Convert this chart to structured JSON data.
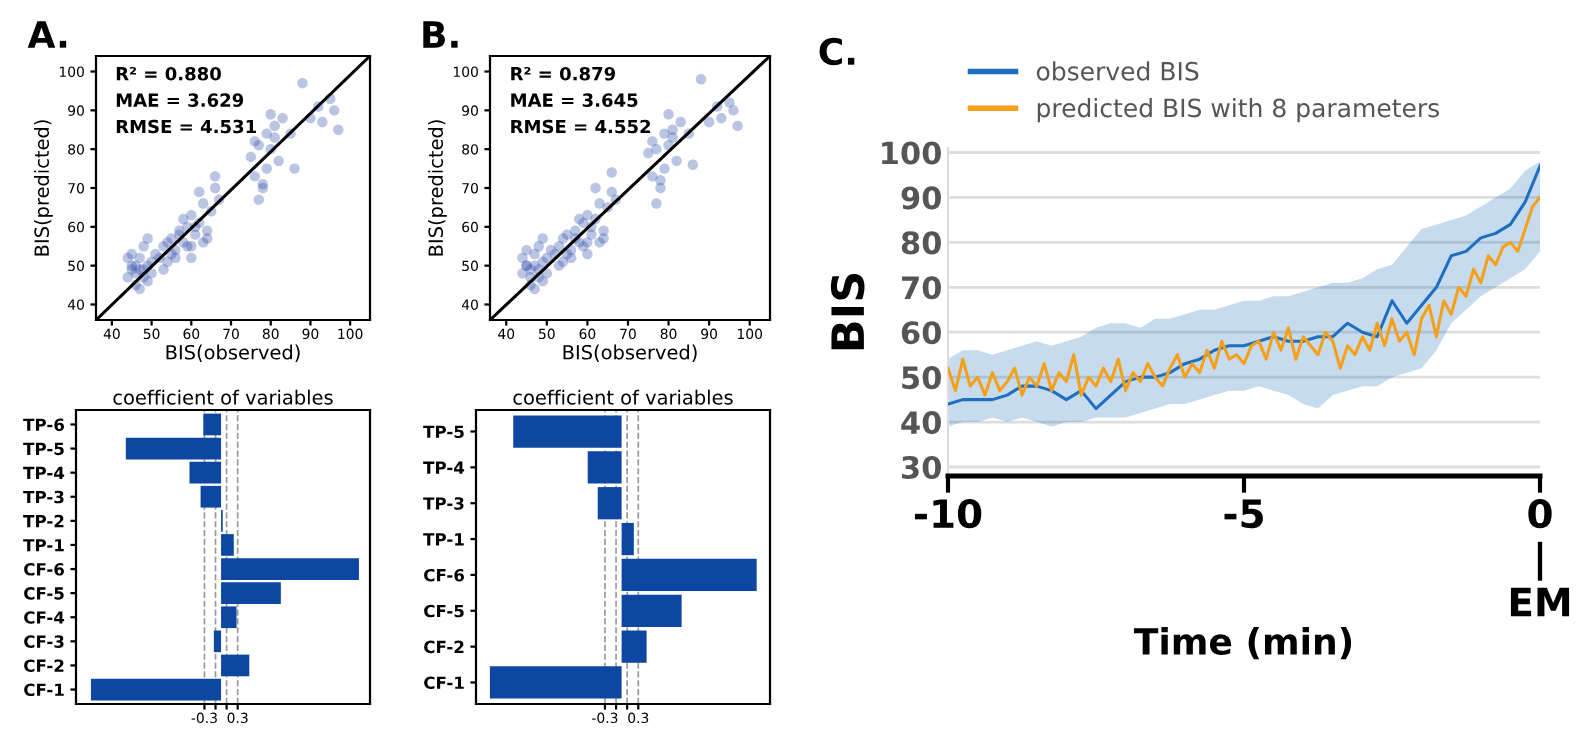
{
  "chart_data": [
    {
      "type": "scatter",
      "title": "A.",
      "xlabel": "BIS(observed)",
      "ylabel": "BIS(predicted)",
      "xlim": [
        36,
        105
      ],
      "ylim": [
        36,
        104
      ],
      "xticks": [
        40,
        50,
        60,
        70,
        80,
        90,
        100
      ],
      "yticks": [
        40,
        50,
        60,
        70,
        80,
        90,
        100
      ],
      "annotations": [
        "R² = 0.880",
        "MAE = 3.629",
        "RMSE = 4.531"
      ],
      "grid": false,
      "marker": "circle",
      "series": [
        {
          "color": "#3a56b0",
          "x": [
            44,
            45,
            46,
            47,
            48,
            49,
            50,
            45,
            46,
            47,
            48,
            49,
            44,
            46,
            48,
            50,
            51,
            47,
            45,
            49,
            52,
            53,
            54,
            55,
            56,
            57,
            58,
            59,
            53,
            55,
            57,
            59,
            54,
            56,
            58,
            60,
            60,
            61,
            62,
            63,
            64,
            65,
            66,
            67,
            60,
            62,
            64,
            66,
            61,
            63,
            75,
            76,
            77,
            78,
            79,
            80,
            81,
            82,
            77,
            79,
            81,
            83,
            76,
            78,
            80,
            85,
            86,
            90,
            92,
            93,
            95,
            96,
            97,
            88
          ],
          "values": [
            47,
            50,
            48,
            52,
            49,
            46,
            51,
            53,
            45,
            49,
            47,
            50,
            52,
            50,
            55,
            48,
            53,
            44,
            49,
            57,
            52,
            55,
            51,
            57,
            54,
            58,
            56,
            60,
            49,
            53,
            59,
            55,
            56,
            52,
            62,
            55,
            63,
            58,
            61,
            66,
            59,
            64,
            70,
            67,
            52,
            69,
            57,
            73,
            60,
            56,
            78,
            73,
            81,
            70,
            84,
            80,
            86,
            77,
            67,
            75,
            83,
            88,
            82,
            71,
            89,
            84,
            75,
            88,
            91,
            87,
            93,
            90,
            85,
            97
          ]
        },
        {
          "type": "line",
          "marker": "none",
          "color": "#000000",
          "x": [
            36,
            105
          ],
          "values": [
            36,
            104
          ]
        }
      ]
    },
    {
      "type": "bar",
      "orientation": "horizontal",
      "title": "coefficient of variables",
      "categories": [
        "TP-6",
        "TP-5",
        "TP-4",
        "TP-3",
        "TP-2",
        "TP-1",
        "CF-6",
        "CF-5",
        "CF-4",
        "CF-3",
        "CF-2",
        "CF-1"
      ],
      "values": [
        -0.32,
        -1.72,
        -0.57,
        -0.37,
        0.03,
        0.23,
        2.49,
        1.08,
        0.28,
        -0.13,
        0.51,
        -2.35
      ],
      "color": "#0d47a1",
      "xlim": [
        -2.62,
        2.69
      ],
      "xticks": [
        -0.3,
        {
          "value": -0.1,
          "label": null
        },
        {
          "value": 0.1,
          "label": null
        },
        0.3
      ],
      "grid": "x"
    },
    {
      "type": "scatter",
      "title": "B.",
      "xlabel": "BIS(observed)",
      "ylabel": "BIS(predicted)",
      "xlim": [
        36,
        105
      ],
      "ylim": [
        36,
        104
      ],
      "xticks": [
        40,
        50,
        60,
        70,
        80,
        90,
        100
      ],
      "yticks": [
        40,
        50,
        60,
        70,
        80,
        90,
        100
      ],
      "annotations": [
        "R² = 0.879",
        "MAE = 3.645",
        "RMSE = 4.552"
      ],
      "grid": false,
      "marker": "circle",
      "series": [
        {
          "color": "#3a56b0",
          "x": [
            44,
            45,
            46,
            47,
            48,
            49,
            50,
            45,
            46,
            47,
            48,
            49,
            44,
            46,
            48,
            50,
            51,
            47,
            45,
            49,
            52,
            53,
            54,
            55,
            56,
            57,
            58,
            59,
            53,
            55,
            57,
            59,
            54,
            56,
            58,
            60,
            60,
            61,
            62,
            63,
            64,
            65,
            66,
            67,
            60,
            62,
            64,
            66,
            61,
            63,
            75,
            76,
            77,
            78,
            79,
            80,
            81,
            82,
            77,
            79,
            81,
            83,
            76,
            78,
            80,
            85,
            86,
            90,
            92,
            93,
            95,
            96,
            97,
            88
          ],
          "values": [
            48,
            50,
            47,
            53,
            49,
            46,
            52,
            54,
            45,
            50,
            47,
            51,
            52,
            49,
            55,
            48,
            54,
            44,
            50,
            57,
            53,
            55,
            51,
            58,
            54,
            57,
            56,
            61,
            50,
            53,
            59,
            55,
            57,
            52,
            62,
            56,
            63,
            58,
            62,
            66,
            59,
            65,
            69,
            67,
            53,
            70,
            57,
            74,
            60,
            56,
            79,
            73,
            80,
            70,
            84,
            81,
            85,
            77,
            66,
            75,
            83,
            87,
            82,
            72,
            89,
            84,
            76,
            87,
            91,
            88,
            92,
            90,
            86,
            98
          ]
        },
        {
          "type": "line",
          "marker": "none",
          "color": "#000000",
          "x": [
            36,
            105
          ],
          "values": [
            36,
            104
          ]
        }
      ]
    },
    {
      "type": "bar",
      "orientation": "horizontal",
      "title": "coefficient of variables",
      "categories": [
        "TP-5",
        "TP-4",
        "TP-3",
        "TP-1",
        "CF-6",
        "CF-5",
        "CF-2",
        "CF-1"
      ],
      "values": [
        -1.95,
        -0.61,
        -0.43,
        0.22,
        2.43,
        1.08,
        0.45,
        -2.37
      ],
      "color": "#0d47a1",
      "xlim": [
        -2.62,
        2.67
      ],
      "xticks": [
        -0.3,
        {
          "value": -0.1,
          "label": null
        },
        {
          "value": 0.1,
          "label": null
        },
        0.3
      ],
      "grid": "x"
    },
    {
      "type": "line",
      "title": "C.",
      "xlabel": "Time (min)",
      "ylabel": "BIS",
      "xlim": [
        -10,
        0
      ],
      "ylim": [
        28,
        101
      ],
      "xticks": [
        -10,
        -5,
        {
          "value": 0,
          "label": "0\n|\nEM"
        }
      ],
      "yticks": [
        30,
        40,
        50,
        60,
        70,
        80,
        90,
        100
      ],
      "grid": "y",
      "legend": "top",
      "series": [
        {
          "name": "observed BIS",
          "color": "#1f6fc0",
          "x": [
            -10,
            -9.75,
            -9.5,
            -9.25,
            -9,
            -8.75,
            -8.5,
            -8.25,
            -8,
            -7.75,
            -7.5,
            -7.25,
            -7,
            -6.75,
            -6.5,
            -6.25,
            -6,
            -5.75,
            -5.5,
            -5.25,
            -5,
            -4.75,
            -4.5,
            -4.25,
            -4,
            -3.75,
            -3.5,
            -3.25,
            -3,
            -2.75,
            -2.5,
            -2.25,
            -2,
            -1.75,
            -1.5,
            -1.25,
            -1,
            -0.75,
            -0.5,
            -0.25,
            0
          ],
          "values": [
            44,
            45,
            45,
            45,
            46,
            48,
            48,
            47,
            45,
            47,
            43,
            46,
            49,
            50,
            50,
            51,
            53,
            54,
            56,
            57,
            57,
            58,
            59,
            58,
            58,
            59,
            59,
            62,
            60,
            59,
            67,
            62,
            66,
            70,
            77,
            78,
            81,
            82,
            84,
            89,
            97
          ],
          "lower": [
            39,
            40,
            40,
            41,
            40,
            41,
            40,
            39,
            40,
            40,
            41,
            41,
            41,
            42,
            43,
            44,
            44,
            45,
            46,
            47,
            47,
            48,
            47,
            46,
            44,
            43,
            46,
            47,
            48,
            48,
            50,
            51,
            52,
            56,
            62,
            65,
            68,
            70,
            72,
            74,
            78
          ],
          "upper": [
            54,
            56,
            56,
            55,
            56,
            57,
            58,
            57,
            58,
            59,
            61,
            62,
            62,
            61,
            63,
            63,
            64,
            65,
            65,
            66,
            67,
            67,
            68,
            68,
            69,
            70,
            71,
            71,
            72,
            74,
            75,
            79,
            83,
            84,
            85,
            86,
            88,
            90,
            92,
            96,
            98
          ]
        },
        {
          "name": "predicted BIS with 8 parameters",
          "color": "#f5a01a",
          "x": [
            -10,
            -9.875,
            -9.75,
            -9.625,
            -9.5,
            -9.375,
            -9.25,
            -9.125,
            -9,
            -8.875,
            -8.75,
            -8.625,
            -8.5,
            -8.375,
            -8.25,
            -8.125,
            -8,
            -7.875,
            -7.75,
            -7.625,
            -7.5,
            -7.375,
            -7.25,
            -7.125,
            -7,
            -6.875,
            -6.75,
            -6.625,
            -6.5,
            -6.375,
            -6.25,
            -6.125,
            -6,
            -5.875,
            -5.75,
            -5.625,
            -5.5,
            -5.375,
            -5.25,
            -5.125,
            -5,
            -4.875,
            -4.75,
            -4.625,
            -4.5,
            -4.375,
            -4.25,
            -4.125,
            -4,
            -3.875,
            -3.75,
            -3.625,
            -3.5,
            -3.375,
            -3.25,
            -3.125,
            -3,
            -2.875,
            -2.75,
            -2.625,
            -2.5,
            -2.375,
            -2.25,
            -2.125,
            -2,
            -1.875,
            -1.75,
            -1.625,
            -1.5,
            -1.375,
            -1.25,
            -1.125,
            -1,
            -0.875,
            -0.75,
            -0.625,
            -0.5,
            -0.375,
            -0.25,
            -0.125,
            0
          ],
          "values": [
            52,
            47,
            54,
            48,
            50,
            46,
            51,
            47,
            49,
            52,
            46,
            50,
            48,
            53,
            47,
            51,
            49,
            55,
            46,
            50,
            48,
            52,
            49,
            54,
            47,
            51,
            49,
            53,
            50,
            48,
            52,
            55,
            50,
            53,
            51,
            56,
            52,
            58,
            54,
            55,
            53,
            57,
            58,
            54,
            60,
            56,
            61,
            54,
            59,
            57,
            55,
            60,
            58,
            52,
            57,
            55,
            59,
            56,
            62,
            57,
            63,
            58,
            60,
            55,
            63,
            66,
            59,
            67,
            64,
            70,
            68,
            74,
            71,
            77,
            75,
            79,
            80,
            78,
            83,
            88,
            90
          ]
        }
      ]
    }
  ]
}
